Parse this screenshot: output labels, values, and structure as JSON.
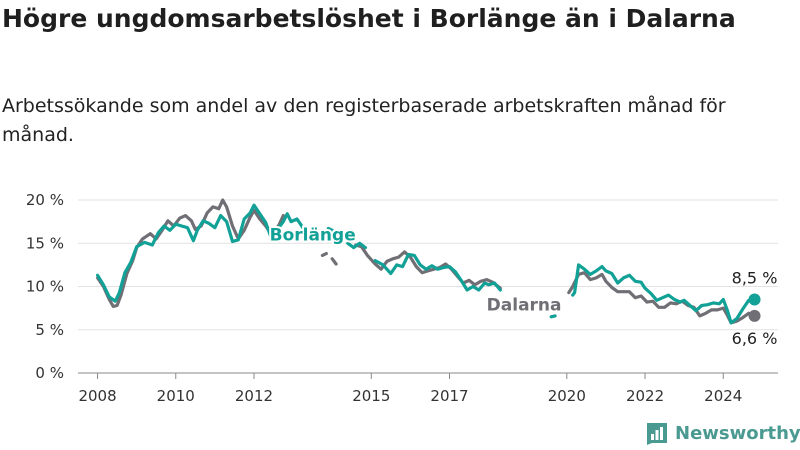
{
  "title": "Högre ungdomsarbetslöshet i Borlänge än i Dalarna",
  "subtitle": "Arbetssökande som andel av den registerbaserade arbetskraften månad för månad.",
  "brand": {
    "name": "Newsworthy",
    "icon": "bar-chart-logo-icon"
  },
  "colors": {
    "borlange": "#12a196",
    "dalarna": "#6f6f75",
    "grid": "#e2e2e2",
    "axis": "#888888"
  },
  "chart_data": {
    "type": "line",
    "ylim": [
      0,
      20
    ],
    "yticks": [
      {
        "value": 0,
        "label": "0 %"
      },
      {
        "value": 5,
        "label": "5 %"
      },
      {
        "value": 10,
        "label": "10 %"
      },
      {
        "value": 15,
        "label": "15 %"
      },
      {
        "value": 20,
        "label": "20 %"
      }
    ],
    "xlim": [
      2007.5,
      2025.4
    ],
    "xticks": [
      {
        "value": 2008,
        "label": "2008"
      },
      {
        "value": 2010,
        "label": "2010"
      },
      {
        "value": 2012,
        "label": "2012"
      },
      {
        "value": 2015,
        "label": "2015"
      },
      {
        "value": 2017,
        "label": "2017"
      },
      {
        "value": 2020,
        "label": "2020"
      },
      {
        "value": 2022,
        "label": "2022"
      },
      {
        "value": 2024,
        "label": "2024"
      }
    ],
    "grid": true,
    "series": [
      {
        "name": "Borlänge",
        "color": "#12a196",
        "label_at": [
          2012.4,
          15.3
        ],
        "end_label": "8,5 %",
        "segments": [
          [
            [
              2008.0,
              11.3
            ],
            [
              2008.15,
              10.2
            ],
            [
              2008.3,
              8.8
            ],
            [
              2008.45,
              8.3
            ],
            [
              2008.55,
              9.2
            ],
            [
              2008.7,
              11.6
            ],
            [
              2008.85,
              12.8
            ],
            [
              2009.0,
              14.6
            ],
            [
              2009.2,
              15.1
            ],
            [
              2009.4,
              14.8
            ],
            [
              2009.55,
              16.2
            ],
            [
              2009.7,
              17.0
            ],
            [
              2009.85,
              16.5
            ],
            [
              2010.0,
              17.2
            ],
            [
              2010.15,
              17.0
            ],
            [
              2010.3,
              16.8
            ],
            [
              2010.45,
              15.3
            ],
            [
              2010.55,
              16.5
            ],
            [
              2010.7,
              17.6
            ],
            [
              2010.85,
              17.3
            ],
            [
              2011.0,
              16.8
            ],
            [
              2011.15,
              18.2
            ],
            [
              2011.3,
              17.5
            ],
            [
              2011.45,
              15.2
            ],
            [
              2011.6,
              15.4
            ],
            [
              2011.75,
              17.8
            ],
            [
              2011.9,
              18.5
            ],
            [
              2012.0,
              19.4
            ],
            [
              2012.15,
              18.4
            ],
            [
              2012.3,
              17.4
            ],
            [
              2012.45,
              15.5
            ],
            [
              2012.6,
              16.6
            ],
            [
              2012.75,
              17.5
            ],
            [
              2012.85,
              18.4
            ],
            [
              2012.95,
              17.5
            ],
            [
              2013.1,
              17.8
            ],
            [
              2013.25,
              16.8
            ]
          ],
          [
            [
              2013.9,
              16.7
            ],
            [
              2014.0,
              16.5
            ]
          ],
          [
            [
              2014.4,
              15.0
            ],
            [
              2014.55,
              14.5
            ],
            [
              2014.7,
              15.0
            ],
            [
              2014.85,
              14.5
            ]
          ],
          [
            [
              2015.1,
              13.0
            ],
            [
              2015.3,
              12.5
            ],
            [
              2015.5,
              11.5
            ],
            [
              2015.65,
              12.5
            ],
            [
              2015.8,
              12.3
            ],
            [
              2015.95,
              13.7
            ],
            [
              2016.1,
              13.6
            ],
            [
              2016.25,
              12.5
            ],
            [
              2016.4,
              12.0
            ],
            [
              2016.55,
              12.4
            ],
            [
              2016.7,
              12.0
            ],
            [
              2016.85,
              12.2
            ],
            [
              2017.0,
              12.3
            ],
            [
              2017.15,
              11.7
            ],
            [
              2017.3,
              10.7
            ],
            [
              2017.45,
              9.6
            ],
            [
              2017.6,
              10.0
            ],
            [
              2017.75,
              9.6
            ],
            [
              2017.9,
              10.4
            ],
            [
              2018.0,
              10.2
            ],
            [
              2018.15,
              10.4
            ],
            [
              2018.3,
              9.6
            ]
          ],
          [
            [
              2019.6,
              6.5
            ],
            [
              2019.7,
              6.6
            ]
          ],
          [
            [
              2020.15,
              9.0
            ],
            [
              2020.2,
              9.3
            ],
            [
              2020.3,
              12.5
            ],
            [
              2020.45,
              12.0
            ],
            [
              2020.6,
              11.4
            ],
            [
              2020.75,
              11.8
            ],
            [
              2020.9,
              12.3
            ],
            [
              2021.0,
              11.8
            ],
            [
              2021.15,
              11.5
            ],
            [
              2021.3,
              10.4
            ],
            [
              2021.45,
              11.0
            ],
            [
              2021.6,
              11.3
            ],
            [
              2021.75,
              10.6
            ],
            [
              2021.9,
              10.5
            ],
            [
              2022.0,
              9.8
            ],
            [
              2022.15,
              9.2
            ],
            [
              2022.3,
              8.4
            ],
            [
              2022.45,
              8.7
            ],
            [
              2022.6,
              9.0
            ],
            [
              2022.75,
              8.5
            ],
            [
              2022.9,
              8.2
            ],
            [
              2023.0,
              8.4
            ],
            [
              2023.15,
              7.8
            ],
            [
              2023.3,
              7.2
            ],
            [
              2023.45,
              7.8
            ],
            [
              2023.6,
              7.9
            ],
            [
              2023.75,
              8.1
            ],
            [
              2023.9,
              8.0
            ],
            [
              2024.0,
              8.5
            ],
            [
              2024.1,
              7.3
            ],
            [
              2024.2,
              5.8
            ],
            [
              2024.35,
              6.3
            ],
            [
              2024.5,
              7.4
            ],
            [
              2024.65,
              8.4
            ],
            [
              2024.8,
              8.5
            ]
          ]
        ]
      },
      {
        "name": "Dalarna",
        "color": "#6f6f75",
        "label_at": [
          2017.95,
          7.2
        ],
        "end_label": "6,6 %",
        "segments": [
          [
            [
              2008.0,
              11.0
            ],
            [
              2008.15,
              10.0
            ],
            [
              2008.3,
              8.5
            ],
            [
              2008.4,
              7.7
            ],
            [
              2008.5,
              7.8
            ],
            [
              2008.6,
              9.0
            ],
            [
              2008.75,
              11.5
            ],
            [
              2008.9,
              13.0
            ],
            [
              2009.0,
              14.5
            ],
            [
              2009.15,
              15.5
            ],
            [
              2009.35,
              16.1
            ],
            [
              2009.5,
              15.5
            ],
            [
              2009.65,
              16.5
            ],
            [
              2009.8,
              17.6
            ],
            [
              2009.95,
              17.0
            ],
            [
              2010.1,
              17.9
            ],
            [
              2010.25,
              18.2
            ],
            [
              2010.4,
              17.6
            ],
            [
              2010.5,
              16.6
            ],
            [
              2010.65,
              17.0
            ],
            [
              2010.8,
              18.5
            ],
            [
              2010.95,
              19.2
            ],
            [
              2011.1,
              19.0
            ],
            [
              2011.2,
              20.0
            ],
            [
              2011.3,
              19.2
            ],
            [
              2011.45,
              17.0
            ],
            [
              2011.6,
              15.5
            ],
            [
              2011.75,
              16.5
            ],
            [
              2011.9,
              18.0
            ],
            [
              2012.0,
              18.8
            ],
            [
              2012.15,
              17.8
            ],
            [
              2012.3,
              17.0
            ],
            [
              2012.45,
              16.0
            ],
            [
              2012.55,
              16.5
            ],
            [
              2012.65,
              17.2
            ],
            [
              2012.75,
              18.2
            ]
          ],
          [
            [
              2013.75,
              13.6
            ],
            [
              2013.85,
              13.8
            ]
          ],
          [
            [
              2014.0,
              13.2
            ],
            [
              2014.1,
              12.6
            ]
          ],
          [
            [
              2014.6,
              14.8
            ],
            [
              2014.75,
              14.6
            ],
            [
              2014.9,
              13.6
            ],
            [
              2015.1,
              12.6
            ],
            [
              2015.25,
              12.0
            ],
            [
              2015.4,
              12.9
            ],
            [
              2015.55,
              13.2
            ],
            [
              2015.7,
              13.4
            ],
            [
              2015.85,
              14.0
            ],
            [
              2016.0,
              13.4
            ],
            [
              2016.15,
              12.3
            ],
            [
              2016.3,
              11.6
            ],
            [
              2016.45,
              11.8
            ],
            [
              2016.6,
              12.0
            ],
            [
              2016.75,
              12.2
            ],
            [
              2016.9,
              12.6
            ],
            [
              2017.05,
              12.0
            ],
            [
              2017.2,
              11.2
            ],
            [
              2017.35,
              10.4
            ],
            [
              2017.5,
              10.7
            ],
            [
              2017.65,
              10.2
            ],
            [
              2017.8,
              10.6
            ],
            [
              2017.95,
              10.8
            ],
            [
              2018.1,
              10.5
            ],
            [
              2018.3,
              9.8
            ]
          ],
          [
            [
              2020.05,
              9.3
            ],
            [
              2020.15,
              10.0
            ],
            [
              2020.3,
              11.4
            ],
            [
              2020.45,
              11.6
            ],
            [
              2020.6,
              10.8
            ],
            [
              2020.75,
              11.0
            ],
            [
              2020.9,
              11.4
            ],
            [
              2021.0,
              10.6
            ],
            [
              2021.15,
              9.9
            ],
            [
              2021.3,
              9.4
            ],
            [
              2021.45,
              9.4
            ],
            [
              2021.6,
              9.4
            ],
            [
              2021.75,
              8.7
            ],
            [
              2021.9,
              8.9
            ],
            [
              2022.05,
              8.2
            ],
            [
              2022.2,
              8.3
            ],
            [
              2022.35,
              7.6
            ],
            [
              2022.5,
              7.6
            ],
            [
              2022.65,
              8.1
            ],
            [
              2022.8,
              8.0
            ],
            [
              2022.95,
              8.3
            ],
            [
              2023.1,
              7.8
            ],
            [
              2023.25,
              7.6
            ],
            [
              2023.4,
              6.6
            ],
            [
              2023.55,
              6.9
            ],
            [
              2023.7,
              7.3
            ],
            [
              2023.85,
              7.3
            ],
            [
              2024.0,
              7.5
            ],
            [
              2024.1,
              6.7
            ],
            [
              2024.2,
              5.8
            ],
            [
              2024.35,
              6.0
            ],
            [
              2024.5,
              6.4
            ],
            [
              2024.65,
              6.9
            ],
            [
              2024.8,
              6.6
            ]
          ]
        ]
      }
    ]
  }
}
